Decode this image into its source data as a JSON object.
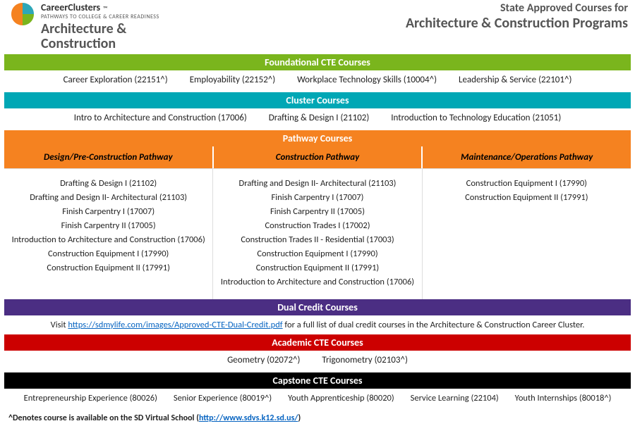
{
  "header": {
    "brand_main": "CareerClusters",
    "brand_tm": "™",
    "tagline": "PATHWAYS TO COLLEGE & CAREER READINESS",
    "cluster_line1": "Architecture &",
    "cluster_line2": "Construction",
    "right_small": "State Approved Courses for",
    "right_big": "Architecture & Construction Programs"
  },
  "colors": {
    "foundational": "#7ab51d",
    "cluster": "#00a7b5",
    "pathway_bar": "#f58220",
    "pathway_sub": "#f58220",
    "dual": "#4b2e83",
    "academic": "#cc0000",
    "capstone": "#000000"
  },
  "sections": {
    "foundational_title": "Foundational CTE Courses",
    "cluster_title": "Cluster Courses",
    "pathway_title": "Pathway Courses",
    "dual_title": "Dual Credit Courses",
    "academic_title": "Academic CTE Courses",
    "capstone_title": "Capstone CTE Courses"
  },
  "foundational": [
    "Career Exploration (22151^)",
    "Employability (22152^)",
    "Workplace Technology Skills (10004^)",
    "Leadership & Service (22101^)"
  ],
  "cluster": [
    "Intro to Architecture and Construction (17006)",
    "Drafting & Design I (21102)",
    "Introduction to Technology Education (21051)"
  ],
  "pathways": {
    "h1": "Design/Pre-Construction Pathway",
    "h2": "Construction Pathway",
    "h3": "Maintenance/Operations Pathway",
    "col1": [
      "Drafting & Design I (21102)",
      "Drafting and Design II- Architectural (21103)",
      "Finish Carpentry I (17007)",
      "Finish Carpentry II (17005)",
      "Introduction to Architecture and Construction (17006)",
      "Construction Equipment I (17990)",
      "Construction Equipment II (17991)"
    ],
    "col2": [
      "Drafting and Design II- Architectural (21103)",
      "Finish Carpentry I (17007)",
      "Finish Carpentry II (17005)",
      "Construction Trades I (17002)",
      "Construction Trades II - Residential (17003)",
      "Construction Equipment I (17990)",
      "Construction Equipment II (17991)",
      "Introduction to Architecture and Construction (17006)"
    ],
    "col3": [
      "Construction Equipment I (17990)",
      "Construction Equipment II (17991)"
    ]
  },
  "dual": {
    "prefix": "Visit ",
    "link_text": "https://sdmylife.com/images/Approved-CTE-Dual-Credit.pdf",
    "suffix": " for a full list of dual credit courses in the Architecture & Construction Career Cluster."
  },
  "academic": [
    "Geometry (02072^)",
    "Trigonometry (02103^)"
  ],
  "capstone": [
    "Entrepreneurship Experience (80026)",
    "Senior Experience (80019^)",
    "Youth Apprenticeship (80020)",
    "Service Learning (22104)",
    "Youth Internships (80018^)"
  ],
  "footnote": {
    "prefix": "^Denotes course is available on the SD Virtual School (",
    "link_text": "http://www.sdvs.k12.sd.us/",
    "suffix": ")"
  }
}
